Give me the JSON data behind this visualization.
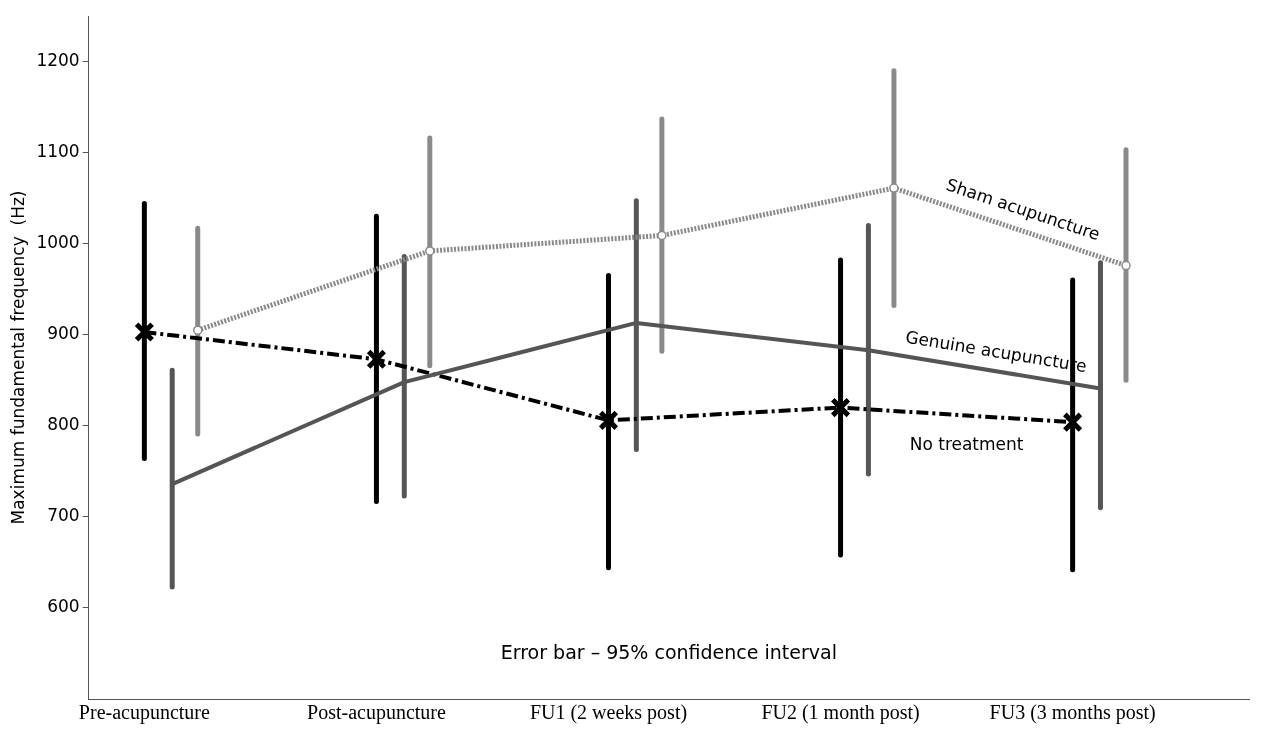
{
  "chart_data": {
    "type": "line",
    "ylabel": "Maximum fundamental frequency  (Hz)",
    "categories": [
      "Pre-acupuncture",
      "Post-acupuncture",
      "FU1 (2 weeks post)",
      "FU2 (1 month post)",
      "FU3 (3 months post)"
    ],
    "ylim": [
      500,
      1250
    ],
    "yticks": [
      600,
      700,
      800,
      900,
      1000,
      1100,
      1200
    ],
    "grid": false,
    "legend": false,
    "series": [
      {
        "name": "No treatment",
        "color": "#000000",
        "marker": "cross",
        "line_style": "dashed",
        "values": [
          903,
          873,
          806,
          820,
          804
        ],
        "errors": [
          [
            764,
            1044
          ],
          [
            717,
            1030
          ],
          [
            644,
            965
          ],
          [
            658,
            982
          ],
          [
            642,
            960
          ]
        ]
      },
      {
        "name": "Genuine acupuncture",
        "color": "#555555",
        "marker": "none",
        "line_style": "solid",
        "values": [
          736,
          848,
          913,
          883,
          841
        ],
        "errors": [
          [
            623,
            861
          ],
          [
            723,
            986
          ],
          [
            774,
            1047
          ],
          [
            747,
            1020
          ],
          [
            710,
            979
          ]
        ]
      },
      {
        "name": "Sham acupuncture",
        "color": "#8a8a8a",
        "marker": "circle",
        "line_style": "dotted",
        "values": [
          905,
          992,
          1009,
          1061,
          976
        ],
        "errors": [
          [
            791,
            1017
          ],
          [
            866,
            1116
          ],
          [
            882,
            1137
          ],
          [
            932,
            1190
          ],
          [
            850,
            1103
          ]
        ]
      }
    ],
    "annotations": [
      "Error bar – 95% confidence interval"
    ]
  }
}
